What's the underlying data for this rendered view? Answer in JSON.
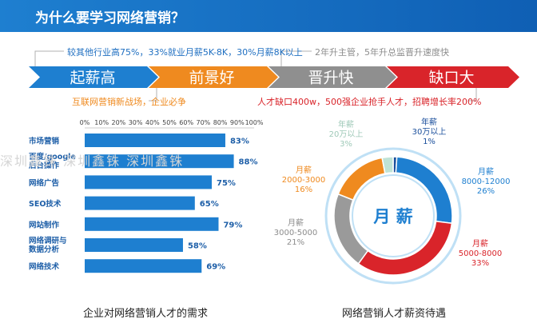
{
  "header": {
    "title": "为什么要学习网络营销？"
  },
  "stages": [
    {
      "label": "起薪高",
      "color": "#1e7fd0",
      "note": "较其他行业高75%，33%就业月薪5K-8K，30%月薪8K以上",
      "note_position": "top"
    },
    {
      "label": "前景好",
      "color": "#ef8a1f",
      "note": "互联网营销新战场，企业必争",
      "note_position": "bottom"
    },
    {
      "label": "晋升快",
      "color": "#8f8f8f",
      "note": "2年升主管，5年升总监晋升速度快",
      "note_position": "top"
    },
    {
      "label": "缺口大",
      "color": "#d9242a",
      "note": "人才缺口400w，500强企业抢手人才，招聘增长率200%",
      "note_position": "bottom"
    }
  ],
  "watermark": "深圳鑫铢  深圳鑫铢  深圳鑫铢",
  "chart_data": [
    {
      "type": "bar",
      "orientation": "horizontal",
      "caption": "企业对网络营销人才的需求",
      "categories": [
        "市场营销",
        "百度/google后台操作",
        "网络广告",
        "SEO技术",
        "网站制作",
        "网络调研与数据分析",
        "网络技术"
      ],
      "values": [
        83,
        88,
        75,
        65,
        79,
        58,
        69
      ],
      "value_labels": [
        "83%",
        "88%",
        "75%",
        "65%",
        "79%",
        "58%",
        "69%"
      ],
      "tick_labels": [
        "0%",
        "10%",
        "20%",
        "30%",
        "40%",
        "50%",
        "60%",
        "70%",
        "80%",
        "90%",
        "100%"
      ],
      "xlim": [
        0,
        100
      ],
      "bar_color": "#1e7fd0"
    },
    {
      "type": "pie",
      "style": "donut",
      "caption": "网络营销人才薪资待遇",
      "center_label": "月 薪",
      "slices": [
        {
          "lines": [
            "年薪",
            "30万以上",
            "1%"
          ],
          "value": 1,
          "color": "#1b4f9c"
        },
        {
          "lines": [
            "月薪",
            "8000-12000",
            "26%"
          ],
          "value": 26,
          "color": "#1e7fd0"
        },
        {
          "lines": [
            "月薪",
            "5000-8000",
            "33%"
          ],
          "value": 33,
          "color": "#d9242a"
        },
        {
          "lines": [
            "月薪",
            "3000-5000",
            "21%"
          ],
          "value": 21,
          "color": "#9a9a9a"
        },
        {
          "lines": [
            "月薪",
            "2000-3000",
            "16%"
          ],
          "value": 16,
          "color": "#ef8a1f"
        },
        {
          "lines": [
            "年薪",
            "20万以上",
            "3%"
          ],
          "value": 3,
          "color": "#bfe3d6"
        }
      ]
    }
  ]
}
